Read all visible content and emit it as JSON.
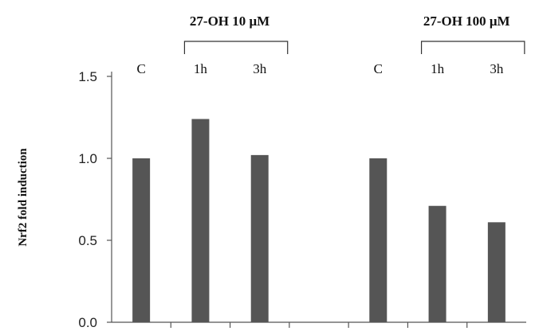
{
  "chart_data": {
    "type": "bar",
    "ylabel": "Nrf2 fold induction",
    "ylim": [
      0,
      1.5
    ],
    "yticks": [
      "0.0",
      "0.5",
      "1.0",
      "1.5"
    ],
    "grid": false,
    "groups": [
      {
        "title": "27-OH 10 μM",
        "categories": [
          "1h",
          "3h"
        ]
      },
      {
        "title": "27-OH 100 μM",
        "categories": [
          "1h",
          "3h"
        ]
      }
    ],
    "categories": [
      "C",
      "1h",
      "3h",
      "",
      "C",
      "1h",
      "3h"
    ],
    "values": [
      1.0,
      1.24,
      1.02,
      null,
      1.0,
      0.71,
      0.61
    ],
    "colors": {
      "bar": "#555555",
      "axis": "#555555",
      "text": "#111111"
    }
  }
}
